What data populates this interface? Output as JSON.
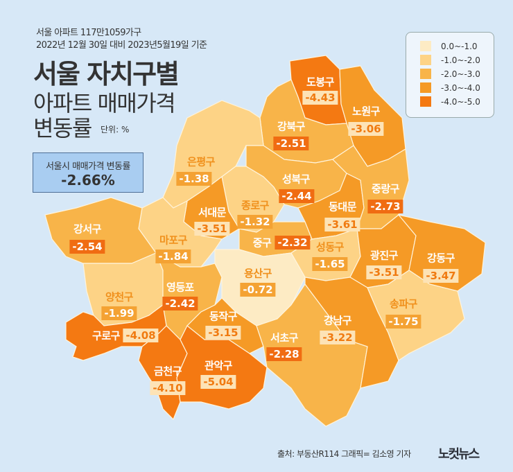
{
  "header": {
    "subtitle1": "서울 아파트 117만1059가구",
    "subtitle2": "2022년 12월 30일 대비 2023년5월19일 기준",
    "title1": "서울 자치구별",
    "title2": "아파트 매매가격",
    "title3": "변동률",
    "unit": "단위: %"
  },
  "average": {
    "label": "서울시 매매가격 변동률",
    "value": "-2.66%"
  },
  "legend": [
    {
      "label": "0.0~-1.0",
      "color": "#fdebc4"
    },
    {
      "label": "-1.0~-2.0",
      "color": "#fdd386"
    },
    {
      "label": "-2.0~-3.0",
      "color": "#f8b449"
    },
    {
      "label": "-3.0~-4.0",
      "color": "#f59a26"
    },
    {
      "label": "-4.0~-5.0",
      "color": "#f47912"
    }
  ],
  "districts": [
    {
      "name": "도봉구",
      "value": "-4.43",
      "bin": 4
    },
    {
      "name": "노원구",
      "value": "-3.06",
      "bin": 3
    },
    {
      "name": "강북구",
      "value": "-2.51",
      "bin": 2
    },
    {
      "name": "은평구",
      "value": "-1.38",
      "bin": 1
    },
    {
      "name": "성북구",
      "value": "-2.44",
      "bin": 2
    },
    {
      "name": "종로구",
      "value": "-1.32",
      "bin": 1
    },
    {
      "name": "서대문",
      "value": "-3.51",
      "bin": 3
    },
    {
      "name": "마포구",
      "value": "-1.84",
      "bin": 1
    },
    {
      "name": "중구",
      "value": "-2.32",
      "bin": 2
    },
    {
      "name": "동대문",
      "value": "-3.61",
      "bin": 3
    },
    {
      "name": "중랑구",
      "value": "-2.73",
      "bin": 2
    },
    {
      "name": "성동구",
      "value": "-1.65",
      "bin": 1
    },
    {
      "name": "광진구",
      "value": "-3.51",
      "bin": 3
    },
    {
      "name": "강동구",
      "value": "-3.47",
      "bin": 3
    },
    {
      "name": "강서구",
      "value": "-2.54",
      "bin": 2
    },
    {
      "name": "양천구",
      "value": "-1.99",
      "bin": 1
    },
    {
      "name": "영등포",
      "value": "-2.42",
      "bin": 2
    },
    {
      "name": "용산구",
      "value": "-0.72",
      "bin": 0
    },
    {
      "name": "동작구",
      "value": "-3.15",
      "bin": 3
    },
    {
      "name": "서초구",
      "value": "-2.28",
      "bin": 2
    },
    {
      "name": "강남구",
      "value": "-3.22",
      "bin": 3
    },
    {
      "name": "송파구",
      "value": "-1.75",
      "bin": 1
    },
    {
      "name": "구로구",
      "value": "-4.08",
      "bin": 4
    },
    {
      "name": "금천구",
      "value": "-4.10",
      "bin": 4
    },
    {
      "name": "관악구",
      "value": "-5.04",
      "bin": 4
    }
  ],
  "footer": {
    "source": "출처: 부동산R114   그래픽= 김소영 기자"
  },
  "logo": "노컷뉴스"
}
